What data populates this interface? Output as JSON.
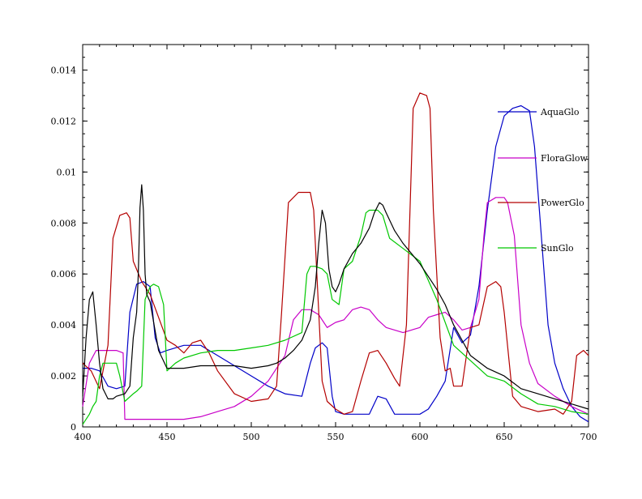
{
  "chart_data": {
    "type": "line",
    "title": "",
    "xlabel": "",
    "ylabel": "",
    "xlim": [
      400,
      700
    ],
    "ylim": [
      0,
      0.015
    ],
    "grid": false,
    "legend_placement": "right, inside plot",
    "x_ticks": [
      "400",
      "450",
      "500",
      "550",
      "600",
      "650",
      "700"
    ],
    "y_ticks": [
      "0",
      "0.002",
      "0.004",
      "0.006",
      "0.008",
      "0.01",
      "0.012",
      "0.014"
    ],
    "series": [
      {
        "name": "AquaGlo",
        "color": "#0000c8",
        "x": [
          400,
          405,
          410,
          415,
          420,
          425,
          428,
          432,
          436,
          440,
          443,
          446,
          450,
          460,
          470,
          480,
          490,
          500,
          510,
          520,
          530,
          535,
          538,
          542,
          545,
          548,
          550,
          555,
          560,
          565,
          570,
          575,
          580,
          585,
          590,
          600,
          605,
          610,
          615,
          620,
          625,
          630,
          635,
          640,
          645,
          650,
          655,
          660,
          665,
          668,
          672,
          676,
          680,
          685,
          690,
          695,
          700
        ],
        "y": [
          0.0023,
          0.0023,
          0.0022,
          0.0016,
          0.0015,
          0.0016,
          0.0045,
          0.0056,
          0.0057,
          0.0055,
          0.0035,
          0.0029,
          0.003,
          0.0032,
          0.0032,
          0.0028,
          0.0024,
          0.002,
          0.0016,
          0.0013,
          0.0012,
          0.0025,
          0.0031,
          0.0033,
          0.0031,
          0.0012,
          0.0006,
          0.0005,
          0.0005,
          0.0005,
          0.0005,
          0.0012,
          0.0011,
          0.0005,
          0.0005,
          0.0005,
          0.0007,
          0.0012,
          0.0018,
          0.0039,
          0.0033,
          0.0036,
          0.0055,
          0.0085,
          0.011,
          0.0122,
          0.0125,
          0.0126,
          0.0124,
          0.011,
          0.0075,
          0.004,
          0.0025,
          0.0015,
          0.0008,
          0.0004,
          0.0002
        ]
      },
      {
        "name": "FloraGlow",
        "color": "#c800c8",
        "x": [
          400,
          404,
          408,
          412,
          416,
          420,
          424,
          425,
          430,
          440,
          450,
          460,
          470,
          480,
          490,
          500,
          510,
          520,
          525,
          530,
          535,
          540,
          545,
          550,
          555,
          560,
          565,
          570,
          575,
          580,
          585,
          590,
          595,
          600,
          605,
          610,
          615,
          620,
          625,
          630,
          635,
          638,
          640,
          645,
          650,
          652,
          656,
          660,
          665,
          670,
          680,
          690,
          700
        ],
        "y": [
          0.0008,
          0.0025,
          0.003,
          0.003,
          0.003,
          0.003,
          0.0029,
          0.0003,
          0.0003,
          0.0003,
          0.0003,
          0.0003,
          0.0004,
          0.0006,
          0.0008,
          0.0012,
          0.0018,
          0.0028,
          0.0042,
          0.0046,
          0.0046,
          0.0044,
          0.0039,
          0.0041,
          0.0042,
          0.0046,
          0.0047,
          0.0046,
          0.0042,
          0.0039,
          0.0038,
          0.0037,
          0.0038,
          0.0039,
          0.0043,
          0.0044,
          0.0045,
          0.0042,
          0.0038,
          0.0039,
          0.005,
          0.0075,
          0.0088,
          0.009,
          0.009,
          0.0088,
          0.0075,
          0.004,
          0.0025,
          0.0017,
          0.0012,
          0.0008,
          0.0005
        ]
      },
      {
        "name": "PowerGlo",
        "color": "#b40000",
        "x": [
          400,
          405,
          410,
          415,
          418,
          422,
          426,
          428,
          430,
          435,
          440,
          445,
          450,
          455,
          460,
          465,
          470,
          475,
          480,
          490,
          500,
          510,
          515,
          518,
          522,
          528,
          532,
          535,
          537,
          540,
          542,
          545,
          550,
          555,
          560,
          565,
          570,
          575,
          580,
          585,
          588,
          592,
          596,
          600,
          604,
          606,
          608,
          612,
          615,
          618,
          620,
          625,
          630,
          635,
          640,
          645,
          648,
          650,
          655,
          660,
          670,
          680,
          685,
          690,
          693,
          697,
          700
        ],
        "y": [
          0.0025,
          0.0022,
          0.0015,
          0.0032,
          0.0074,
          0.0083,
          0.0084,
          0.0082,
          0.0065,
          0.0057,
          0.0052,
          0.0043,
          0.0034,
          0.0032,
          0.0029,
          0.0033,
          0.0034,
          0.0029,
          0.0022,
          0.0013,
          0.001,
          0.0011,
          0.0016,
          0.0045,
          0.0088,
          0.0092,
          0.0092,
          0.0092,
          0.0085,
          0.0045,
          0.0018,
          0.001,
          0.0007,
          0.0005,
          0.0006,
          0.0018,
          0.0029,
          0.003,
          0.0025,
          0.0019,
          0.0016,
          0.004,
          0.0125,
          0.0131,
          0.013,
          0.0125,
          0.0085,
          0.0035,
          0.0022,
          0.0023,
          0.0016,
          0.0016,
          0.0039,
          0.004,
          0.0055,
          0.0057,
          0.0055,
          0.0045,
          0.0012,
          0.0008,
          0.0006,
          0.0007,
          0.0005,
          0.001,
          0.0028,
          0.003,
          0.0028
        ]
      },
      {
        "name": "SunGlo",
        "color": "#00c800",
        "x": [
          400,
          404,
          406,
          408,
          410,
          412,
          416,
          420,
          422,
          425,
          430,
          432,
          435,
          437,
          440,
          442,
          445,
          448,
          450,
          455,
          460,
          470,
          480,
          490,
          500,
          510,
          520,
          530,
          533,
          535,
          538,
          542,
          545,
          548,
          552,
          555,
          560,
          565,
          568,
          570,
          575,
          578,
          582,
          590,
          600,
          610,
          620,
          630,
          640,
          650,
          660,
          670,
          680,
          690,
          700
        ],
        "y": [
          0.0001,
          0.0005,
          0.0008,
          0.001,
          0.002,
          0.0025,
          0.0025,
          0.0025,
          0.002,
          0.001,
          0.0013,
          0.0014,
          0.0016,
          0.005,
          0.0055,
          0.0056,
          0.0055,
          0.0048,
          0.0022,
          0.0025,
          0.0027,
          0.0029,
          0.003,
          0.003,
          0.0031,
          0.0032,
          0.0034,
          0.0037,
          0.006,
          0.0063,
          0.0063,
          0.0062,
          0.006,
          0.005,
          0.0048,
          0.0062,
          0.0065,
          0.0075,
          0.0084,
          0.0085,
          0.0085,
          0.0083,
          0.0074,
          0.007,
          0.0065,
          0.005,
          0.0032,
          0.0026,
          0.002,
          0.0018,
          0.0013,
          0.0009,
          0.0008,
          0.0006,
          0.0005
        ]
      },
      {
        "name": "",
        "color": "#000000",
        "x": [
          400,
          402,
          404,
          406,
          408,
          410,
          412,
          415,
          418,
          420,
          425,
          428,
          430,
          432,
          433,
          434,
          435,
          436,
          437,
          438,
          440,
          445,
          450,
          460,
          470,
          480,
          490,
          500,
          510,
          515,
          520,
          525,
          530,
          535,
          538,
          540,
          542,
          544,
          546,
          548,
          550,
          552,
          555,
          560,
          565,
          570,
          573,
          576,
          578,
          580,
          585,
          590,
          595,
          600,
          605,
          610,
          615,
          620,
          625,
          630,
          640,
          650,
          660,
          670,
          680,
          690,
          700
        ],
        "y": [
          0.0012,
          0.0035,
          0.005,
          0.0053,
          0.004,
          0.0025,
          0.0015,
          0.0011,
          0.0011,
          0.0012,
          0.0013,
          0.0016,
          0.0035,
          0.0045,
          0.006,
          0.0086,
          0.0095,
          0.0085,
          0.006,
          0.0052,
          0.0049,
          0.003,
          0.0023,
          0.0023,
          0.0024,
          0.0024,
          0.0024,
          0.0023,
          0.0024,
          0.0025,
          0.0027,
          0.003,
          0.0034,
          0.0042,
          0.0055,
          0.0072,
          0.0085,
          0.008,
          0.0062,
          0.0055,
          0.0053,
          0.0056,
          0.0062,
          0.0068,
          0.0072,
          0.0078,
          0.0084,
          0.0088,
          0.0087,
          0.0084,
          0.0077,
          0.0072,
          0.0068,
          0.0064,
          0.0059,
          0.0054,
          0.0048,
          0.004,
          0.0034,
          0.0028,
          0.0023,
          0.002,
          0.0015,
          0.0013,
          0.0011,
          0.0009,
          0.0007
        ]
      }
    ]
  }
}
